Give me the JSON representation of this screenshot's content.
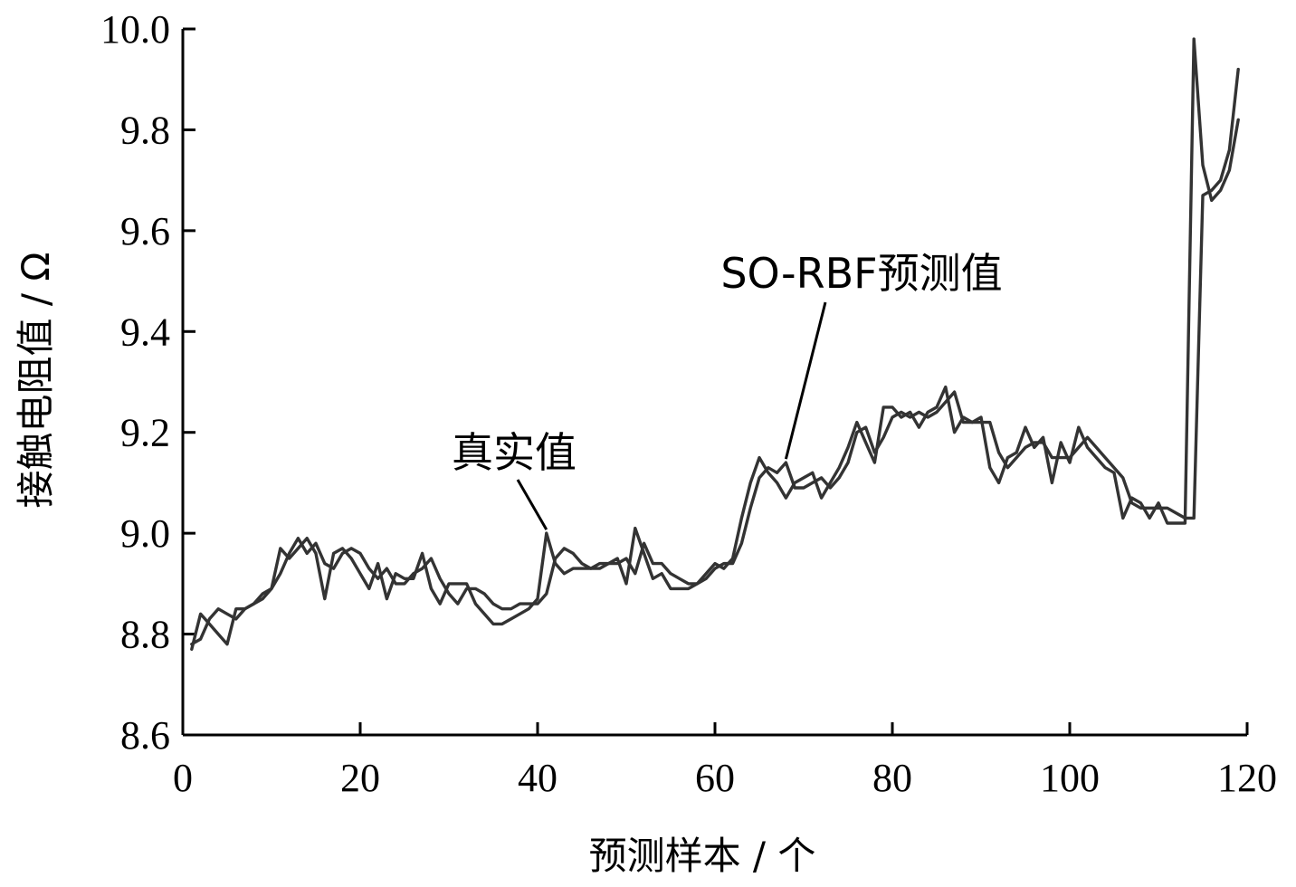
{
  "chart_data": {
    "type": "line",
    "xlabel": "预测样本 / 个",
    "ylabel": "接触电阻值 / Ω",
    "xlim": [
      0,
      120
    ],
    "ylim": [
      8.6,
      10.0
    ],
    "x_ticks": [
      "0",
      "20",
      "40",
      "60",
      "80",
      "100",
      "120"
    ],
    "y_ticks": [
      "8.6",
      "8.8",
      "9.0",
      "9.2",
      "9.4",
      "9.6",
      "9.8",
      "10.0"
    ],
    "grid": false,
    "annotations": [
      {
        "text": "真实值",
        "series": "true",
        "point_x": 41
      },
      {
        "text": "SO-RBF预测值",
        "series": "pred",
        "point_x": 68
      }
    ],
    "series": [
      {
        "id": "true",
        "values": [
          [
            1,
            8.77
          ],
          [
            2,
            8.84
          ],
          [
            3,
            8.82
          ],
          [
            4,
            8.8
          ],
          [
            5,
            8.78
          ],
          [
            6,
            8.85
          ],
          [
            7,
            8.85
          ],
          [
            8,
            8.86
          ],
          [
            9,
            8.87
          ],
          [
            10,
            8.89
          ],
          [
            11,
            8.97
          ],
          [
            12,
            8.95
          ],
          [
            13,
            8.97
          ],
          [
            14,
            8.99
          ],
          [
            15,
            8.96
          ],
          [
            16,
            8.87
          ],
          [
            17,
            8.96
          ],
          [
            18,
            8.97
          ],
          [
            19,
            8.95
          ],
          [
            20,
            8.92
          ],
          [
            21,
            8.89
          ],
          [
            22,
            8.94
          ],
          [
            23,
            8.87
          ],
          [
            24,
            8.92
          ],
          [
            25,
            8.91
          ],
          [
            26,
            8.91
          ],
          [
            27,
            8.96
          ],
          [
            28,
            8.89
          ],
          [
            29,
            8.86
          ],
          [
            30,
            8.9
          ],
          [
            31,
            8.9
          ],
          [
            32,
            8.9
          ],
          [
            33,
            8.86
          ],
          [
            34,
            8.84
          ],
          [
            35,
            8.82
          ],
          [
            36,
            8.82
          ],
          [
            37,
            8.83
          ],
          [
            38,
            8.84
          ],
          [
            39,
            8.85
          ],
          [
            40,
            8.87
          ],
          [
            41,
            9.0
          ],
          [
            42,
            8.94
          ],
          [
            43,
            8.92
          ],
          [
            44,
            8.93
          ],
          [
            45,
            8.93
          ],
          [
            46,
            8.93
          ],
          [
            47,
            8.94
          ],
          [
            48,
            8.94
          ],
          [
            49,
            8.95
          ],
          [
            50,
            8.9
          ],
          [
            51,
            9.01
          ],
          [
            52,
            8.96
          ],
          [
            53,
            8.91
          ],
          [
            54,
            8.92
          ],
          [
            55,
            8.89
          ],
          [
            56,
            8.89
          ],
          [
            57,
            8.89
          ],
          [
            58,
            8.9
          ],
          [
            59,
            8.92
          ],
          [
            60,
            8.94
          ],
          [
            61,
            8.93
          ],
          [
            62,
            8.95
          ],
          [
            63,
            9.03
          ],
          [
            64,
            9.1
          ],
          [
            65,
            9.15
          ],
          [
            66,
            9.12
          ],
          [
            67,
            9.1
          ],
          [
            68,
            9.07
          ],
          [
            69,
            9.1
          ],
          [
            70,
            9.11
          ],
          [
            71,
            9.12
          ],
          [
            72,
            9.07
          ],
          [
            73,
            9.1
          ],
          [
            74,
            9.13
          ],
          [
            75,
            9.17
          ],
          [
            76,
            9.22
          ],
          [
            77,
            9.18
          ],
          [
            78,
            9.14
          ],
          [
            79,
            9.25
          ],
          [
            80,
            9.25
          ],
          [
            81,
            9.23
          ],
          [
            82,
            9.24
          ],
          [
            83,
            9.21
          ],
          [
            84,
            9.24
          ],
          [
            85,
            9.25
          ],
          [
            86,
            9.29
          ],
          [
            87,
            9.2
          ],
          [
            88,
            9.23
          ],
          [
            89,
            9.22
          ],
          [
            90,
            9.23
          ],
          [
            91,
            9.13
          ],
          [
            92,
            9.1
          ],
          [
            93,
            9.15
          ],
          [
            94,
            9.16
          ],
          [
            95,
            9.21
          ],
          [
            96,
            9.17
          ],
          [
            97,
            9.19
          ],
          [
            98,
            9.1
          ],
          [
            99,
            9.18
          ],
          [
            100,
            9.14
          ],
          [
            101,
            9.21
          ],
          [
            102,
            9.17
          ],
          [
            103,
            9.15
          ],
          [
            104,
            9.13
          ],
          [
            105,
            9.12
          ],
          [
            106,
            9.03
          ],
          [
            107,
            9.07
          ],
          [
            108,
            9.06
          ],
          [
            109,
            9.03
          ],
          [
            110,
            9.06
          ],
          [
            111,
            9.02
          ],
          [
            112,
            9.02
          ],
          [
            113,
            9.02
          ],
          [
            114,
            9.98
          ],
          [
            115,
            9.73
          ],
          [
            116,
            9.66
          ],
          [
            117,
            9.68
          ],
          [
            118,
            9.72
          ],
          [
            119,
            9.82
          ]
        ]
      },
      {
        "id": "pred",
        "values": [
          [
            1,
            8.78
          ],
          [
            2,
            8.79
          ],
          [
            3,
            8.83
          ],
          [
            4,
            8.85
          ],
          [
            5,
            8.84
          ],
          [
            6,
            8.83
          ],
          [
            7,
            8.85
          ],
          [
            8,
            8.86
          ],
          [
            9,
            8.88
          ],
          [
            10,
            8.89
          ],
          [
            11,
            8.92
          ],
          [
            12,
            8.96
          ],
          [
            13,
            8.99
          ],
          [
            14,
            8.96
          ],
          [
            15,
            8.98
          ],
          [
            16,
            8.94
          ],
          [
            17,
            8.93
          ],
          [
            18,
            8.96
          ],
          [
            19,
            8.97
          ],
          [
            20,
            8.96
          ],
          [
            21,
            8.93
          ],
          [
            22,
            8.91
          ],
          [
            23,
            8.93
          ],
          [
            24,
            8.9
          ],
          [
            25,
            8.9
          ],
          [
            26,
            8.92
          ],
          [
            27,
            8.93
          ],
          [
            28,
            8.95
          ],
          [
            29,
            8.91
          ],
          [
            30,
            8.88
          ],
          [
            31,
            8.86
          ],
          [
            32,
            8.89
          ],
          [
            33,
            8.89
          ],
          [
            34,
            8.88
          ],
          [
            35,
            8.86
          ],
          [
            36,
            8.85
          ],
          [
            37,
            8.85
          ],
          [
            38,
            8.86
          ],
          [
            39,
            8.86
          ],
          [
            40,
            8.86
          ],
          [
            41,
            8.88
          ],
          [
            42,
            8.95
          ],
          [
            43,
            8.97
          ],
          [
            44,
            8.96
          ],
          [
            45,
            8.94
          ],
          [
            46,
            8.93
          ],
          [
            47,
            8.93
          ],
          [
            48,
            8.94
          ],
          [
            49,
            8.94
          ],
          [
            50,
            8.95
          ],
          [
            51,
            8.92
          ],
          [
            52,
            8.98
          ],
          [
            53,
            8.94
          ],
          [
            54,
            8.94
          ],
          [
            55,
            8.92
          ],
          [
            56,
            8.91
          ],
          [
            57,
            8.9
          ],
          [
            58,
            8.9
          ],
          [
            59,
            8.91
          ],
          [
            60,
            8.93
          ],
          [
            61,
            8.94
          ],
          [
            62,
            8.94
          ],
          [
            63,
            8.98
          ],
          [
            64,
            9.05
          ],
          [
            65,
            9.11
          ],
          [
            66,
            9.13
          ],
          [
            67,
            9.12
          ],
          [
            68,
            9.14
          ],
          [
            69,
            9.09
          ],
          [
            70,
            9.09
          ],
          [
            71,
            9.1
          ],
          [
            72,
            9.11
          ],
          [
            73,
            9.09
          ],
          [
            74,
            9.11
          ],
          [
            75,
            9.14
          ],
          [
            76,
            9.2
          ],
          [
            77,
            9.21
          ],
          [
            78,
            9.16
          ],
          [
            79,
            9.19
          ],
          [
            80,
            9.23
          ],
          [
            81,
            9.24
          ],
          [
            82,
            9.23
          ],
          [
            83,
            9.24
          ],
          [
            84,
            9.23
          ],
          [
            85,
            9.24
          ],
          [
            86,
            9.26
          ],
          [
            87,
            9.28
          ],
          [
            88,
            9.22
          ],
          [
            89,
            9.22
          ],
          [
            90,
            9.22
          ],
          [
            91,
            9.22
          ],
          [
            92,
            9.16
          ],
          [
            93,
            9.13
          ],
          [
            94,
            9.15
          ],
          [
            95,
            9.17
          ],
          [
            96,
            9.18
          ],
          [
            97,
            9.18
          ],
          [
            98,
            9.15
          ],
          [
            99,
            9.15
          ],
          [
            100,
            9.15
          ],
          [
            101,
            9.17
          ],
          [
            102,
            9.19
          ],
          [
            103,
            9.17
          ],
          [
            104,
            9.15
          ],
          [
            105,
            9.13
          ],
          [
            106,
            9.11
          ],
          [
            107,
            9.06
          ],
          [
            108,
            9.05
          ],
          [
            109,
            9.05
          ],
          [
            110,
            9.05
          ],
          [
            111,
            9.05
          ],
          [
            112,
            9.04
          ],
          [
            113,
            9.03
          ],
          [
            114,
            9.03
          ],
          [
            115,
            9.67
          ],
          [
            116,
            9.68
          ],
          [
            117,
            9.7
          ],
          [
            118,
            9.76
          ],
          [
            119,
            9.92
          ]
        ]
      }
    ]
  }
}
